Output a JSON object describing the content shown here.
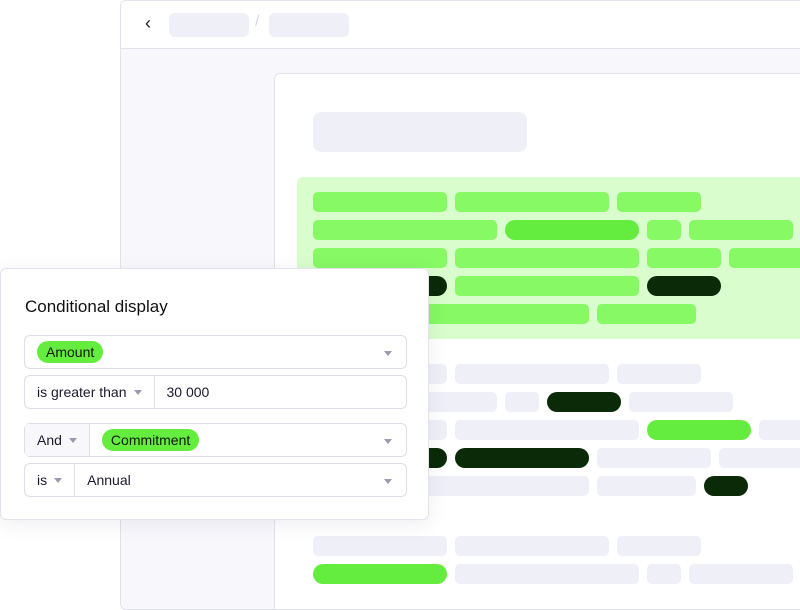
{
  "panel": {
    "title": "Conditional display",
    "row1": {
      "field_tag": "Amount"
    },
    "row2": {
      "operator": "is greater than",
      "value": "30 000"
    },
    "row3": {
      "conjunction": "And",
      "field_tag": "Commitment"
    },
    "row4": {
      "operator": "is",
      "value": "Annual"
    }
  },
  "colors": {
    "accent_green": "#64ec3e",
    "highlight_bg": "#d9fdcd",
    "dark_pill": "#0b2a08"
  },
  "icons": {
    "back": "chevron-left-icon",
    "dropdown": "caret-down-icon"
  }
}
